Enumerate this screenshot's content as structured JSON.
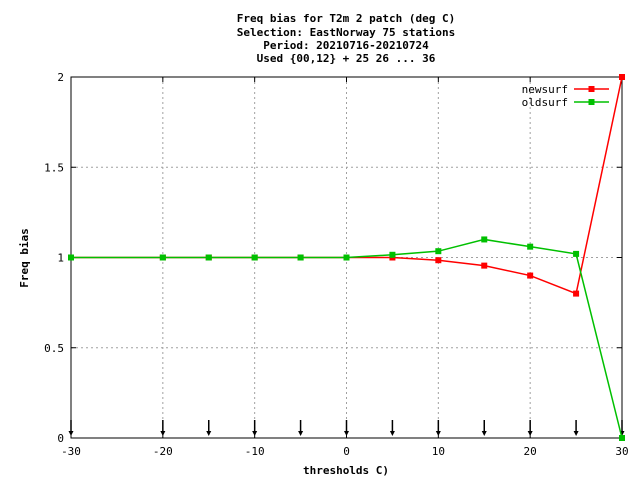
{
  "chart_data": {
    "type": "line",
    "title_lines": [
      "Freq bias  for T2m 2 patch (deg C)",
      "Selection: EastNorway     75 stations",
      "Period: 20210716-20210724",
      "Used {00,12} + 25 26 ... 36"
    ],
    "xlabel": "thresholds C)",
    "ylabel": "Freq bias",
    "xlim": [
      -30,
      30
    ],
    "ylim": [
      0,
      2
    ],
    "xticks": [
      -30,
      -20,
      -10,
      0,
      10,
      20,
      30
    ],
    "yticks": [
      0,
      0.5,
      1,
      1.5,
      2
    ],
    "xtick_labels": [
      "-30",
      "-20",
      "-10",
      "0",
      "10",
      "20",
      "30"
    ],
    "ytick_labels": [
      "0",
      "0.5",
      "1",
      "1.5",
      "2"
    ],
    "grid": true,
    "legend_position": "top-right",
    "arrow_markers_x": [
      -30,
      -20,
      -15,
      -10,
      -5,
      0,
      5,
      10,
      15,
      20,
      25,
      30
    ],
    "series": [
      {
        "name": "newsurf",
        "color": "#ff0000",
        "x": [
          -30,
          -20,
          -15,
          -10,
          -5,
          0,
          5,
          10,
          15,
          20,
          25,
          30
        ],
        "y": [
          1.0,
          1.0,
          1.0,
          1.0,
          1.0,
          1.0,
          1.0,
          0.985,
          0.955,
          0.9,
          0.8,
          2.0
        ]
      },
      {
        "name": "oldsurf",
        "color": "#00c000",
        "x": [
          -30,
          -20,
          -15,
          -10,
          -5,
          0,
          5,
          10,
          15,
          20,
          25,
          30
        ],
        "y": [
          1.0,
          1.0,
          1.0,
          1.0,
          1.0,
          1.0,
          1.015,
          1.035,
          1.1,
          1.06,
          1.02,
          0.0
        ]
      }
    ]
  }
}
